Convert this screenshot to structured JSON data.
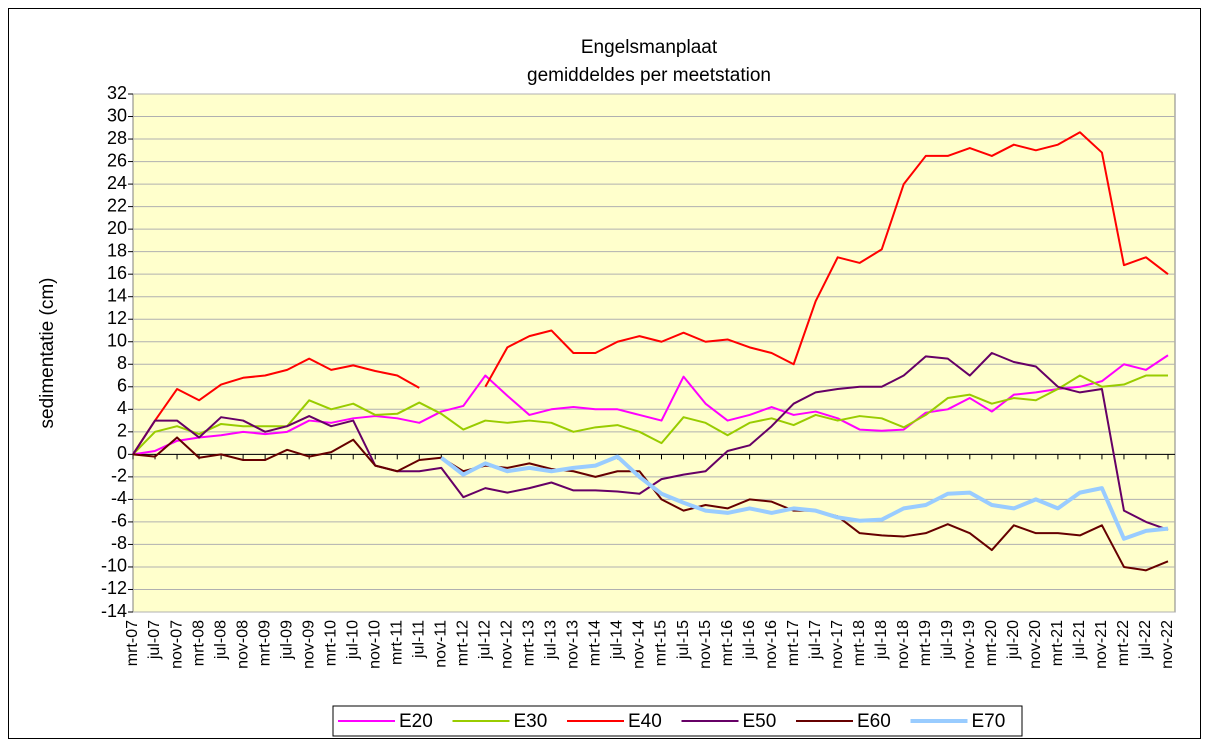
{
  "chart_data": {
    "type": "line",
    "title": "Engelsmanplaat",
    "subtitle": "gemiddeldes per meetstation",
    "y_label": "sedimentatie (cm)",
    "categories": [
      "mrt-07",
      "jul-07",
      "nov-07",
      "mrt-08",
      "jul-08",
      "nov-08",
      "mrt-09",
      "jul-09",
      "nov-09",
      "mrt-10",
      "jul-10",
      "nov-10",
      "mrt-11",
      "jul-11",
      "nov-11",
      "mrt-12",
      "jul-12",
      "nov-12",
      "mrt-13",
      "jul-13",
      "nov-13",
      "mrt-14",
      "jul-14",
      "nov-14",
      "mrt-15",
      "jul-15",
      "nov-15",
      "mrt-16",
      "jul-16",
      "nov-16",
      "mrt-17",
      "jul-17",
      "nov-17",
      "mrt-18",
      "jul-18",
      "nov-18",
      "mrt-19",
      "jul-19",
      "nov-19",
      "mrt-20",
      "jul-20",
      "nov-20",
      "mrt-21",
      "jul-21",
      "nov-21",
      "mrt-22",
      "jul-22",
      "nov-22"
    ],
    "series": [
      {
        "name": "E20",
        "color": "#ff00ff",
        "values": [
          0,
          0.3,
          1.2,
          1.5,
          1.7,
          2,
          1.8,
          2,
          3,
          2.8,
          3.2,
          3.4,
          3.2,
          2.8,
          3.8,
          4.3,
          7,
          5.2,
          3.5,
          4,
          4.2,
          4,
          4,
          3.5,
          3,
          6.9,
          4.5,
          3,
          3.5,
          4.2,
          3.5,
          3.8,
          3.2,
          2.2,
          2.1,
          2.2,
          3.7,
          4,
          5,
          3.8,
          5.3,
          5.5,
          5.8,
          6,
          6.5,
          8,
          7.5,
          8.8
        ]
      },
      {
        "name": "E30",
        "color": "#99cc00",
        "values": [
          0,
          2,
          2.5,
          1.8,
          2.7,
          2.5,
          2.5,
          2.5,
          4.8,
          4,
          4.5,
          3.5,
          3.6,
          4.6,
          3.6,
          2.2,
          3,
          2.8,
          3,
          2.8,
          2,
          2.4,
          2.6,
          2,
          1,
          3.3,
          2.8,
          1.7,
          2.8,
          3.2,
          2.6,
          3.5,
          3,
          3.4,
          3.2,
          2.4,
          3.5,
          5,
          5.3,
          4.5,
          5,
          4.8,
          5.8,
          7,
          6,
          6.2,
          7,
          7
        ]
      },
      {
        "name": "E40",
        "color": "#ff0000",
        "values": [
          0,
          3,
          5.8,
          4.8,
          6.2,
          6.8,
          7,
          7.5,
          8.5,
          7.5,
          7.9,
          7.4,
          7,
          5.9,
          null,
          null,
          6,
          9.5,
          10.5,
          11,
          9,
          9,
          10,
          10.5,
          10,
          10.8,
          10,
          10.2,
          9.5,
          9,
          8,
          13.6,
          17.5,
          17,
          18.2,
          24,
          26.5,
          26.5,
          27.2,
          26.5,
          27.5,
          27,
          27.5,
          28.6,
          26.8,
          16.8,
          17.5,
          16
        ]
      },
      {
        "name": "E50",
        "color": "#660066",
        "values": [
          0,
          3,
          3,
          1.5,
          3.3,
          3,
          2,
          2.5,
          3.4,
          2.5,
          3,
          -1,
          -1.5,
          -1.5,
          -1.2,
          -3.8,
          -3,
          -3.4,
          -3,
          -2.5,
          -3.2,
          -3.2,
          -3.3,
          -3.5,
          -2.2,
          -1.8,
          -1.5,
          0.3,
          0.8,
          2.5,
          4.5,
          5.5,
          5.8,
          6,
          6,
          7,
          8.7,
          8.5,
          7,
          9,
          8.2,
          7.8,
          6,
          5.5,
          5.8,
          -5,
          -6,
          -6.7
        ]
      },
      {
        "name": "E60",
        "color": "#660000",
        "values": [
          0,
          -0.2,
          1.5,
          -0.3,
          0,
          -0.5,
          -0.5,
          0.4,
          -0.2,
          0.2,
          1.3,
          -1,
          -1.5,
          -0.5,
          -0.3,
          -1.5,
          -1,
          -1.2,
          -0.8,
          -1.3,
          -1.5,
          -2,
          -1.5,
          -1.5,
          -4,
          -5,
          -4.5,
          -4.8,
          -4,
          -4.2,
          -5,
          -5,
          -5.5,
          -7,
          -7.2,
          -7.3,
          -7,
          -6.2,
          -7,
          -8.5,
          -6.3,
          -7,
          -7,
          -7.2,
          -6.3,
          -10,
          -10.3,
          -9.5
        ]
      },
      {
        "name": "E70",
        "color": "#99ccff",
        "values": [
          null,
          null,
          null,
          null,
          null,
          null,
          null,
          null,
          null,
          null,
          null,
          null,
          null,
          null,
          -0.3,
          -1.8,
          -0.8,
          -1.5,
          -1.2,
          -1.5,
          -1.2,
          -1,
          -0.2,
          -2,
          -3.5,
          -4.3,
          -5,
          -5.2,
          -4.8,
          -5.2,
          -4.8,
          -5,
          -5.6,
          -5.9,
          -5.8,
          -4.8,
          -4.5,
          -3.5,
          -3.4,
          -4.5,
          -4.8,
          -4,
          -4.8,
          -3.4,
          -3,
          -7.5,
          -6.8,
          -6.6
        ]
      }
    ],
    "ylim": [
      -14,
      32
    ],
    "yticks": [
      -14,
      -12,
      -10,
      -8,
      -6,
      -4,
      -2,
      0,
      2,
      4,
      6,
      8,
      10,
      12,
      14,
      16,
      18,
      20,
      22,
      24,
      26,
      28,
      30,
      32
    ],
    "grid": true,
    "legend": "bottom"
  }
}
